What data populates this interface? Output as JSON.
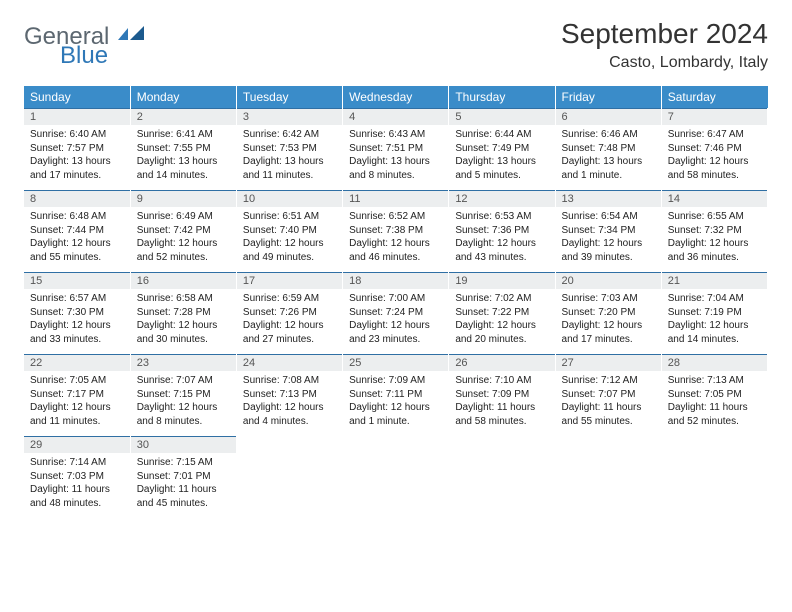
{
  "brand": {
    "part1": "General",
    "part2": "Blue",
    "color1": "#5c6770",
    "color2": "#2f78b7"
  },
  "title": "September 2024",
  "location": "Casto, Lombardy, Italy",
  "header_bg": "#3a8cc9",
  "daynum_bg": "#eceeef",
  "border_color": "#2f6fa4",
  "weekdays": [
    "Sunday",
    "Monday",
    "Tuesday",
    "Wednesday",
    "Thursday",
    "Friday",
    "Saturday"
  ],
  "weeks": [
    [
      {
        "n": "1",
        "sr": "Sunrise: 6:40 AM",
        "ss": "Sunset: 7:57 PM",
        "dl": "Daylight: 13 hours and 17 minutes."
      },
      {
        "n": "2",
        "sr": "Sunrise: 6:41 AM",
        "ss": "Sunset: 7:55 PM",
        "dl": "Daylight: 13 hours and 14 minutes."
      },
      {
        "n": "3",
        "sr": "Sunrise: 6:42 AM",
        "ss": "Sunset: 7:53 PM",
        "dl": "Daylight: 13 hours and 11 minutes."
      },
      {
        "n": "4",
        "sr": "Sunrise: 6:43 AM",
        "ss": "Sunset: 7:51 PM",
        "dl": "Daylight: 13 hours and 8 minutes."
      },
      {
        "n": "5",
        "sr": "Sunrise: 6:44 AM",
        "ss": "Sunset: 7:49 PM",
        "dl": "Daylight: 13 hours and 5 minutes."
      },
      {
        "n": "6",
        "sr": "Sunrise: 6:46 AM",
        "ss": "Sunset: 7:48 PM",
        "dl": "Daylight: 13 hours and 1 minute."
      },
      {
        "n": "7",
        "sr": "Sunrise: 6:47 AM",
        "ss": "Sunset: 7:46 PM",
        "dl": "Daylight: 12 hours and 58 minutes."
      }
    ],
    [
      {
        "n": "8",
        "sr": "Sunrise: 6:48 AM",
        "ss": "Sunset: 7:44 PM",
        "dl": "Daylight: 12 hours and 55 minutes."
      },
      {
        "n": "9",
        "sr": "Sunrise: 6:49 AM",
        "ss": "Sunset: 7:42 PM",
        "dl": "Daylight: 12 hours and 52 minutes."
      },
      {
        "n": "10",
        "sr": "Sunrise: 6:51 AM",
        "ss": "Sunset: 7:40 PM",
        "dl": "Daylight: 12 hours and 49 minutes."
      },
      {
        "n": "11",
        "sr": "Sunrise: 6:52 AM",
        "ss": "Sunset: 7:38 PM",
        "dl": "Daylight: 12 hours and 46 minutes."
      },
      {
        "n": "12",
        "sr": "Sunrise: 6:53 AM",
        "ss": "Sunset: 7:36 PM",
        "dl": "Daylight: 12 hours and 43 minutes."
      },
      {
        "n": "13",
        "sr": "Sunrise: 6:54 AM",
        "ss": "Sunset: 7:34 PM",
        "dl": "Daylight: 12 hours and 39 minutes."
      },
      {
        "n": "14",
        "sr": "Sunrise: 6:55 AM",
        "ss": "Sunset: 7:32 PM",
        "dl": "Daylight: 12 hours and 36 minutes."
      }
    ],
    [
      {
        "n": "15",
        "sr": "Sunrise: 6:57 AM",
        "ss": "Sunset: 7:30 PM",
        "dl": "Daylight: 12 hours and 33 minutes."
      },
      {
        "n": "16",
        "sr": "Sunrise: 6:58 AM",
        "ss": "Sunset: 7:28 PM",
        "dl": "Daylight: 12 hours and 30 minutes."
      },
      {
        "n": "17",
        "sr": "Sunrise: 6:59 AM",
        "ss": "Sunset: 7:26 PM",
        "dl": "Daylight: 12 hours and 27 minutes."
      },
      {
        "n": "18",
        "sr": "Sunrise: 7:00 AM",
        "ss": "Sunset: 7:24 PM",
        "dl": "Daylight: 12 hours and 23 minutes."
      },
      {
        "n": "19",
        "sr": "Sunrise: 7:02 AM",
        "ss": "Sunset: 7:22 PM",
        "dl": "Daylight: 12 hours and 20 minutes."
      },
      {
        "n": "20",
        "sr": "Sunrise: 7:03 AM",
        "ss": "Sunset: 7:20 PM",
        "dl": "Daylight: 12 hours and 17 minutes."
      },
      {
        "n": "21",
        "sr": "Sunrise: 7:04 AM",
        "ss": "Sunset: 7:19 PM",
        "dl": "Daylight: 12 hours and 14 minutes."
      }
    ],
    [
      {
        "n": "22",
        "sr": "Sunrise: 7:05 AM",
        "ss": "Sunset: 7:17 PM",
        "dl": "Daylight: 12 hours and 11 minutes."
      },
      {
        "n": "23",
        "sr": "Sunrise: 7:07 AM",
        "ss": "Sunset: 7:15 PM",
        "dl": "Daylight: 12 hours and 8 minutes."
      },
      {
        "n": "24",
        "sr": "Sunrise: 7:08 AM",
        "ss": "Sunset: 7:13 PM",
        "dl": "Daylight: 12 hours and 4 minutes."
      },
      {
        "n": "25",
        "sr": "Sunrise: 7:09 AM",
        "ss": "Sunset: 7:11 PM",
        "dl": "Daylight: 12 hours and 1 minute."
      },
      {
        "n": "26",
        "sr": "Sunrise: 7:10 AM",
        "ss": "Sunset: 7:09 PM",
        "dl": "Daylight: 11 hours and 58 minutes."
      },
      {
        "n": "27",
        "sr": "Sunrise: 7:12 AM",
        "ss": "Sunset: 7:07 PM",
        "dl": "Daylight: 11 hours and 55 minutes."
      },
      {
        "n": "28",
        "sr": "Sunrise: 7:13 AM",
        "ss": "Sunset: 7:05 PM",
        "dl": "Daylight: 11 hours and 52 minutes."
      }
    ],
    [
      {
        "n": "29",
        "sr": "Sunrise: 7:14 AM",
        "ss": "Sunset: 7:03 PM",
        "dl": "Daylight: 11 hours and 48 minutes."
      },
      {
        "n": "30",
        "sr": "Sunrise: 7:15 AM",
        "ss": "Sunset: 7:01 PM",
        "dl": "Daylight: 11 hours and 45 minutes."
      },
      null,
      null,
      null,
      null,
      null
    ]
  ]
}
